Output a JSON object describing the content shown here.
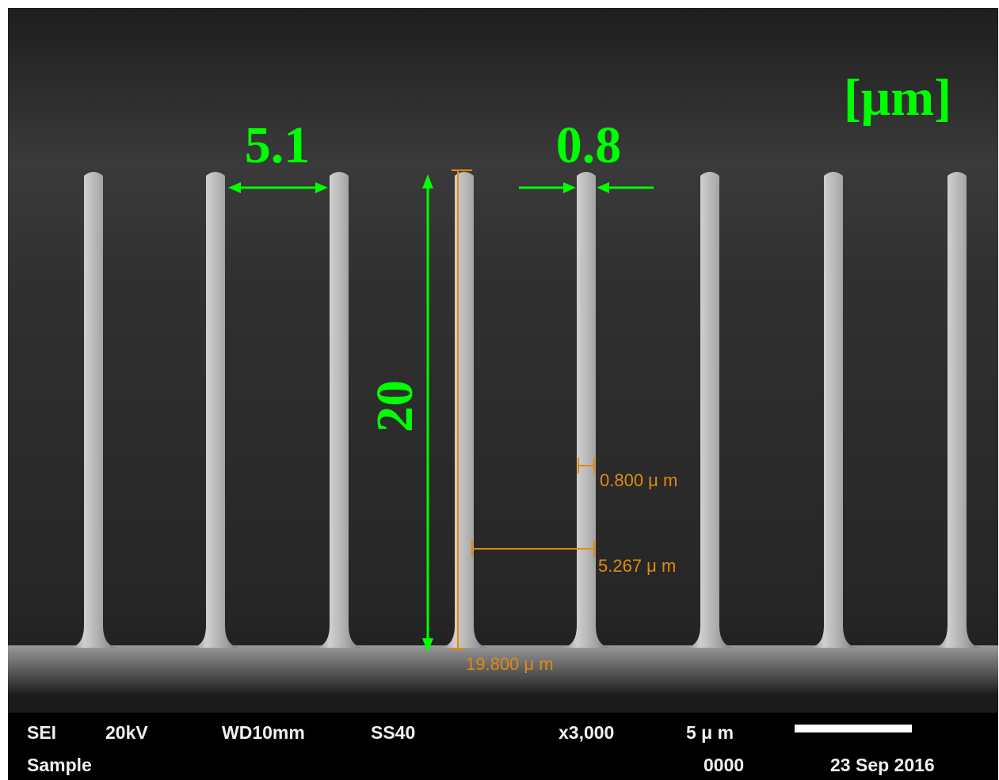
{
  "annotations": {
    "unit": "[μm]",
    "pitch": "5.1",
    "width": "0.8",
    "height": "20"
  },
  "measurements": {
    "width": "0.800 μ m",
    "pitch": "5.267 μ m",
    "height": "19.800 μ m"
  },
  "info_bar": {
    "mode": "SEI",
    "voltage": "20kV",
    "working_distance": "WD10mm",
    "spot_size": "SS40",
    "magnification": "x3,000",
    "scale": "5 μ m",
    "sample": "Sample",
    "number": "0000",
    "date": "23 Sep 2016"
  }
}
